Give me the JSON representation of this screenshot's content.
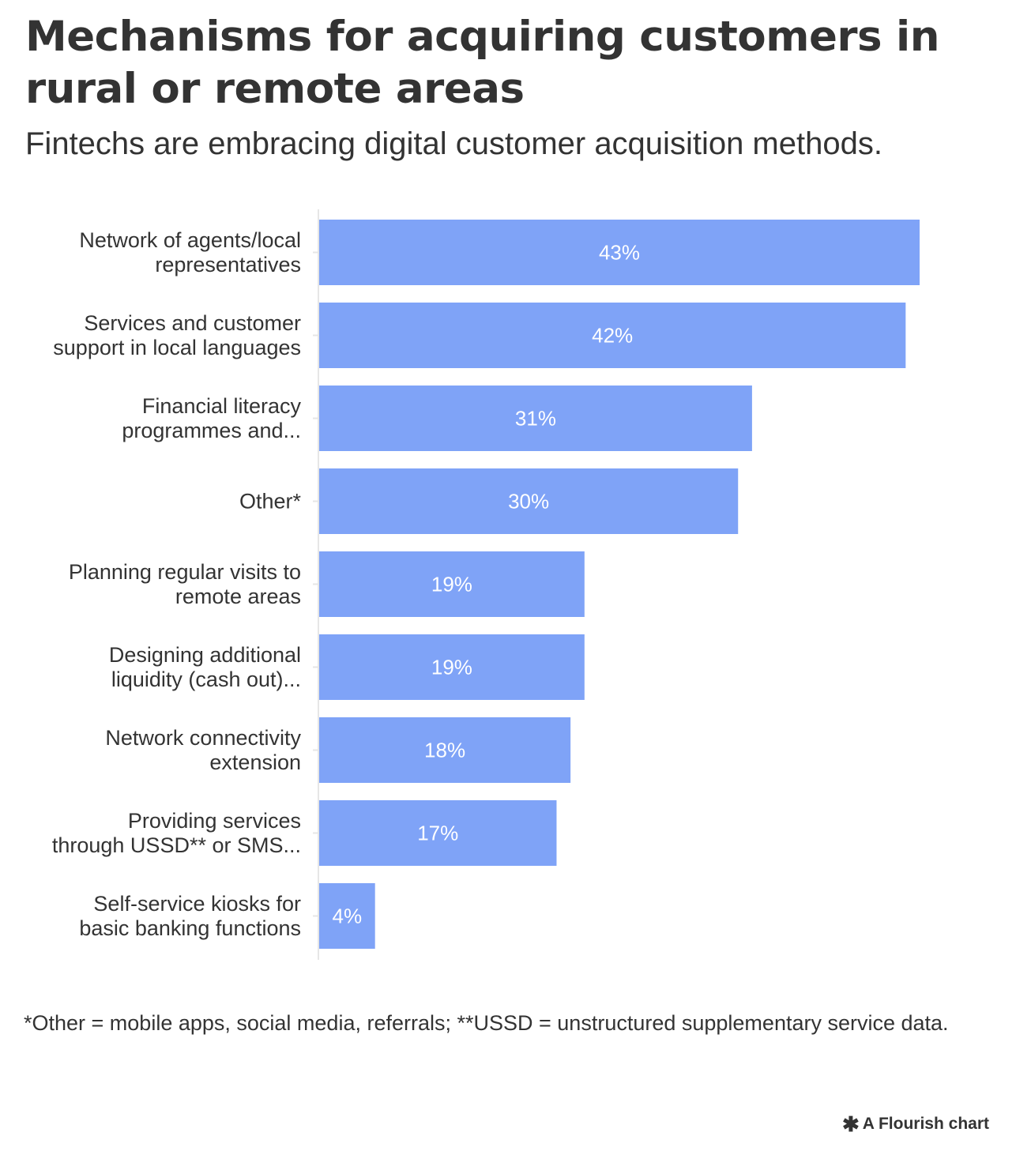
{
  "title": "Mechanisms for acquiring customers in rural or remote areas",
  "subtitle": "Fintechs are embracing digital customer acquisition methods.",
  "note": "*Other = mobile apps, social media, referrals; **USSD = unstructured supplementary service data.",
  "credit": {
    "label": "A Flourish chart",
    "icon": "flourish-asterisk-icon"
  },
  "colors": {
    "bar": "#7fa3f7",
    "text": "#333333",
    "value_label": "#ffffff",
    "axis": "#e6e6e6"
  },
  "chart_data": {
    "type": "bar",
    "orientation": "horizontal",
    "categories": [
      [
        "Network of agents/local",
        "representatives"
      ],
      [
        "Services and customer",
        "support in local languages"
      ],
      [
        "Financial literacy",
        "programmes and..."
      ],
      [
        "Other*"
      ],
      [
        "Planning regular visits to",
        "remote areas"
      ],
      [
        "Designing additional",
        "liquidity (cash out)..."
      ],
      [
        "Network connectivity",
        "extension"
      ],
      [
        "Providing services",
        "through USSD** or SMS..."
      ],
      [
        "Self-service kiosks for",
        "basic banking functions"
      ]
    ],
    "values": [
      43,
      42,
      31,
      30,
      19,
      19,
      18,
      17,
      4
    ],
    "value_labels": [
      "43%",
      "42%",
      "31%",
      "30%",
      "19%",
      "19%",
      "18%",
      "17%",
      "4%"
    ],
    "xlim": [
      0,
      43
    ],
    "grid": false,
    "legend": "none"
  }
}
